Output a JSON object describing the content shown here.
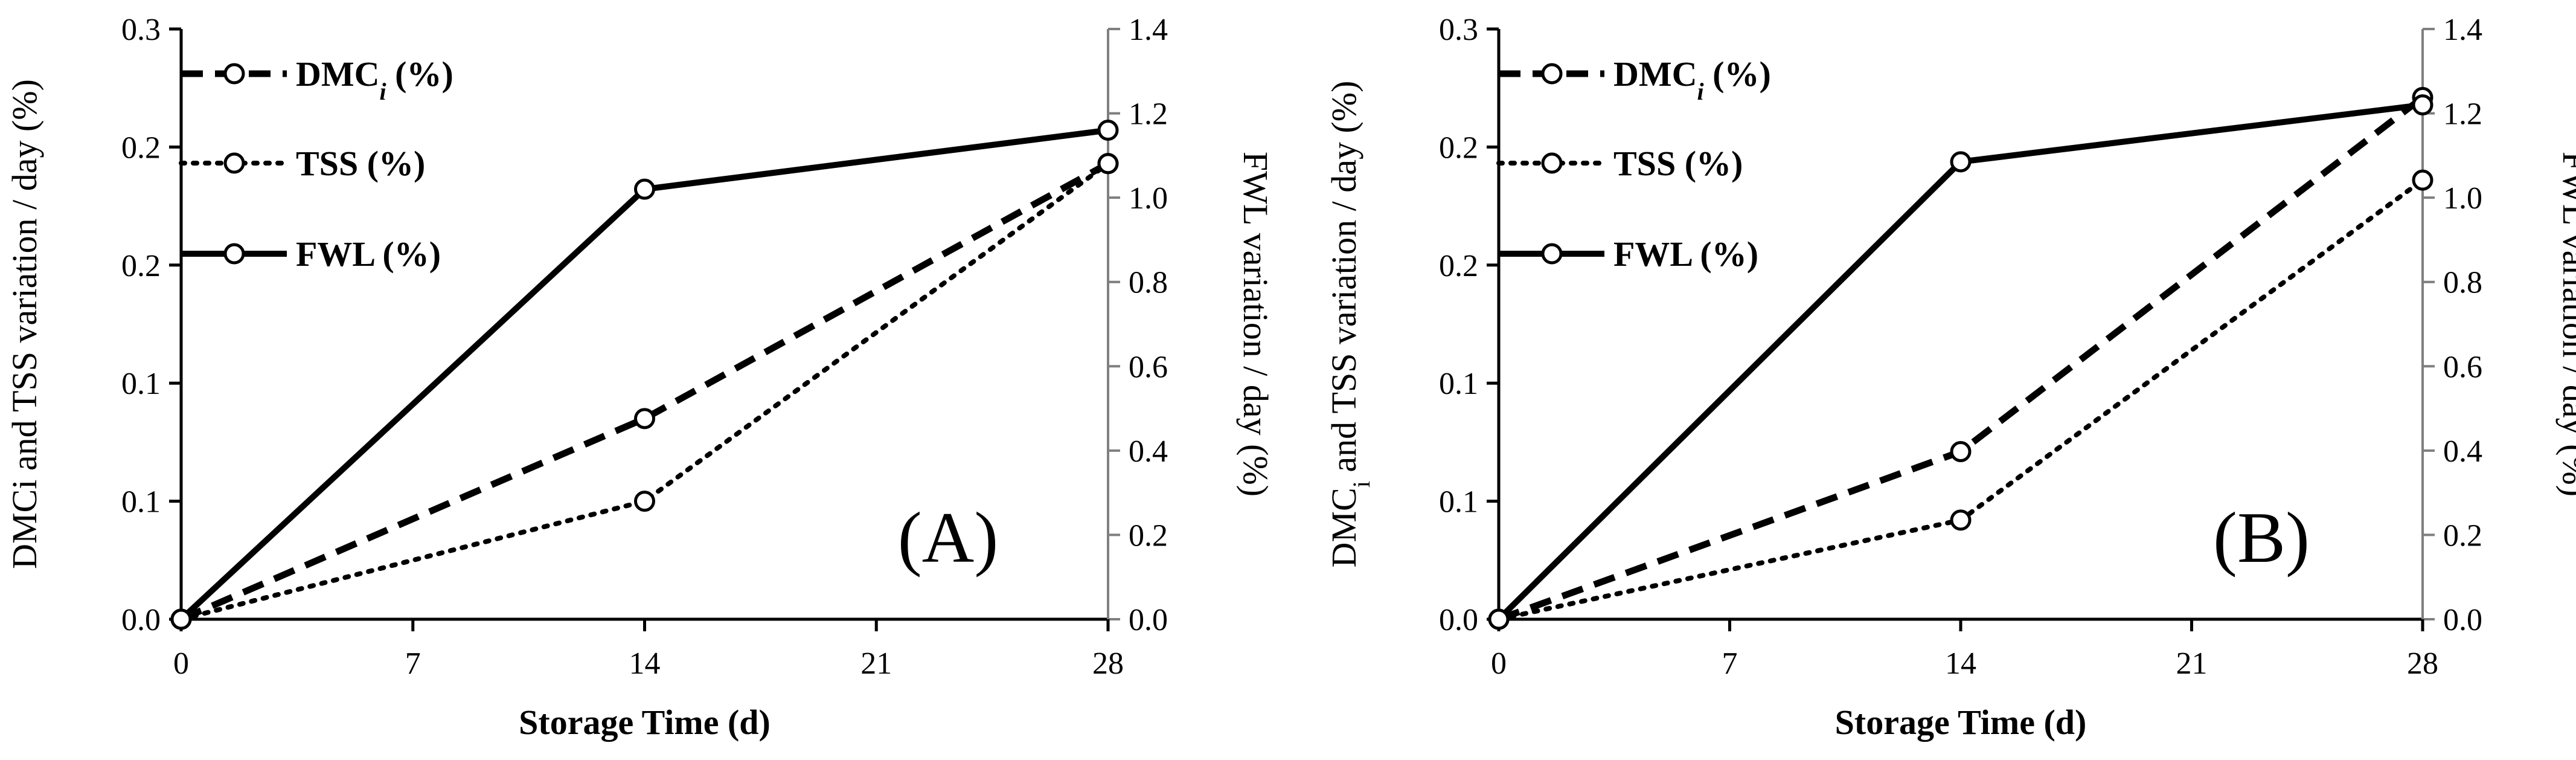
{
  "chart_data": [
    {
      "type": "line",
      "panel_label": "(A)",
      "xlabel": "Storage Time (d)",
      "ylabel": "DMCi and TSS variation / day (%)",
      "ylabel_parts": [
        "DMCi and TSS variation / day (%)"
      ],
      "y2label": "FWL variation / day (%)",
      "xticks": [
        "0",
        "7",
        "14",
        "21",
        "28"
      ],
      "xlim": [
        0,
        28
      ],
      "yticks": [
        "0.0",
        "0.1",
        "0.1",
        "0.2",
        "0.2",
        "0.3"
      ],
      "ylim": [
        0,
        0.25
      ],
      "y2ticks": [
        "0.0",
        "0.2",
        "0.4",
        "0.6",
        "0.8",
        "1.0",
        "1.2",
        "1.4"
      ],
      "y2lim": [
        0,
        1.4
      ],
      "x": [
        0,
        14,
        28
      ],
      "series": [
        {
          "name": "DMCi (%)",
          "label_main": "DMC",
          "label_sub": "i",
          "label_suffix": " (%)",
          "axis": "left",
          "style": "dashed",
          "values": [
            0,
            0.085,
            0.193
          ]
        },
        {
          "name": "TSS (%)",
          "label_main": "TSS (%)",
          "label_sub": "",
          "label_suffix": "",
          "axis": "left",
          "style": "dotted",
          "values": [
            0,
            0.05,
            0.193
          ]
        },
        {
          "name": "FWL (%)",
          "label_main": "FWL (%)",
          "label_sub": "",
          "label_suffix": "",
          "axis": "right",
          "style": "solid",
          "values": [
            0,
            1.02,
            1.16
          ]
        }
      ]
    },
    {
      "type": "line",
      "panel_label": "(B)",
      "xlabel": "Storage Time (d)",
      "ylabel": "DMCi and TSS variation / day (%)",
      "ylabel_parts": [
        "DMC",
        "i",
        " and TSS variation / day (%)"
      ],
      "y2label": "FWL variation / day (%)",
      "xticks": [
        "0",
        "7",
        "14",
        "21",
        "28"
      ],
      "xlim": [
        0,
        28
      ],
      "yticks": [
        "0.0",
        "0.1",
        "0.1",
        "0.2",
        "0.2",
        "0.3"
      ],
      "ylim": [
        0,
        0.25
      ],
      "y2ticks": [
        "0.0",
        "0.2",
        "0.4",
        "0.6",
        "0.8",
        "1.0",
        "1.2",
        "1.4"
      ],
      "y2lim": [
        0,
        1.4
      ],
      "x": [
        0,
        14,
        28
      ],
      "series": [
        {
          "name": "DMCi (%)",
          "label_main": "DMC",
          "label_sub": "i",
          "label_suffix": " (%)",
          "axis": "left",
          "style": "dashed",
          "values": [
            0,
            0.071,
            0.221
          ]
        },
        {
          "name": "TSS (%)",
          "label_main": "TSS (%)",
          "label_sub": "",
          "label_suffix": "",
          "axis": "left",
          "style": "dotted",
          "values": [
            0,
            0.042,
            0.186
          ]
        },
        {
          "name": "FWL (%)",
          "label_main": "FWL (%)",
          "label_sub": "",
          "label_suffix": "",
          "axis": "right",
          "style": "solid",
          "values": [
            0,
            1.085,
            1.22
          ]
        }
      ]
    }
  ]
}
